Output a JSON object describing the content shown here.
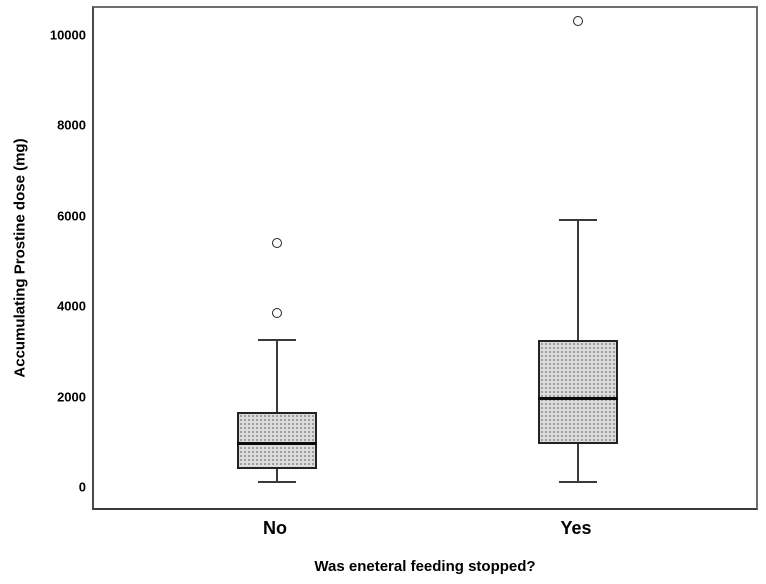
{
  "chart_data": {
    "type": "boxplot",
    "title": "",
    "xlabel": "Was eneteral feeding stopped?",
    "ylabel": "Accumulating Prostine dose (mg)",
    "ylim": [
      -300,
      10700
    ],
    "yticks": [
      0,
      2000,
      4000,
      6000,
      8000,
      10000
    ],
    "categories": [
      "No",
      "Yes"
    ],
    "series": [
      {
        "category": "No",
        "whisker_low": 150,
        "q1": 450,
        "median": 1000,
        "q3": 1700,
        "whisker_high": 3300,
        "outliers": [
          3900,
          5450
        ]
      },
      {
        "category": "Yes",
        "whisker_low": 150,
        "q1": 1000,
        "median": 2000,
        "q3": 3300,
        "whisker_high": 5950,
        "outliers": [
          10350
        ]
      }
    ],
    "legend": null,
    "grid": false,
    "box_fill": "#dcdcdc",
    "box_pattern_dot": "#9a9a9a",
    "line_color": "#3a3a3a",
    "median_color": "#0a0a0a"
  }
}
